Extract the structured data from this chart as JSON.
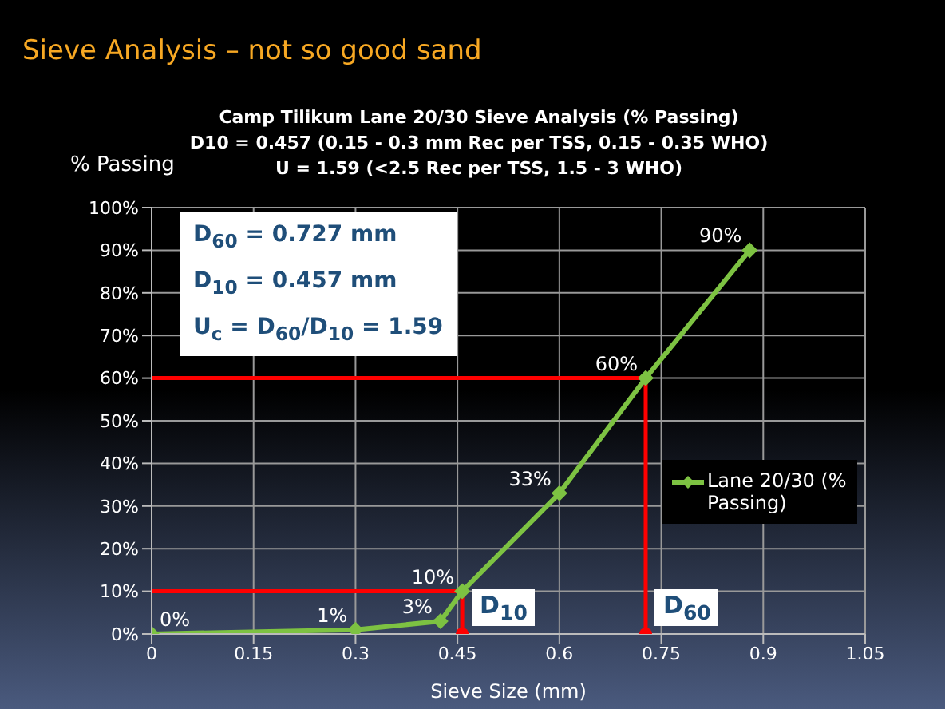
{
  "chart_data": {
    "type": "line",
    "title": "Sieve Analysis – not so good sand",
    "subtitle": "Camp Tilikum Lane 20/30 Sieve Analysis (% Passing)\nD10 = 0.457 (0.15 - 0.3 mm Rec per TSS, 0.15 - 0.35 WHO)\nU = 1.59 (<2.5 Rec per TSS, 1.5 - 3 WHO)",
    "ylabel": "% Passing",
    "xlabel": "Sieve Size (mm)",
    "series": [
      {
        "name": "Lane 20/30 (% Passing)",
        "color": "#7dc242",
        "x": [
          0,
          0.3,
          0.425,
          0.457,
          0.6,
          0.727,
          0.88
        ],
        "values": [
          0,
          1,
          3,
          10,
          33,
          60,
          90
        ],
        "value_labels": [
          "0%",
          "1%",
          "3%",
          "10%",
          "33%",
          "60%",
          "90%"
        ],
        "marker": "diamond"
      },
      {
        "type": "line",
        "color": "#ff0000",
        "x": [
          0,
          0.457,
          0.457
        ],
        "values": [
          10,
          10,
          0
        ],
        "marker": "none"
      },
      {
        "type": "line",
        "color": "#ff0000",
        "x": [
          0,
          0.727,
          0.727
        ],
        "values": [
          60,
          60,
          0
        ],
        "marker": "none"
      },
      {
        "type": "scatter",
        "color": "#ff0000",
        "x": [
          0.457,
          0.727
        ],
        "values": [
          0,
          0
        ],
        "marker": "circle"
      }
    ],
    "xlim": [
      0,
      1.05
    ],
    "xticks": [
      0,
      0.15,
      0.3,
      0.45,
      0.6,
      0.75,
      0.9,
      1.05
    ],
    "ylim": [
      0,
      100
    ],
    "yticks": [
      {
        "value": 0,
        "label": "0%"
      },
      {
        "value": 10,
        "label": "10%"
      },
      {
        "value": 20,
        "label": "20%"
      },
      {
        "value": 30,
        "label": "30%"
      },
      {
        "value": 40,
        "label": "40%"
      },
      {
        "value": 50,
        "label": "50%"
      },
      {
        "value": 60,
        "label": "60%"
      },
      {
        "value": 70,
        "label": "70%"
      },
      {
        "value": 80,
        "label": "80%"
      },
      {
        "value": 90,
        "label": "90%"
      },
      {
        "value": 100,
        "label": "100%"
      }
    ],
    "grid": true,
    "legend": "right",
    "annotations": [
      "D$_{60}$ = 0.727 mm",
      "D$_{10}$ = 0.457 mm",
      "U$_{c}$ = D$_{60}$/D$_{10}$ = 1.59",
      {
        "text": "D$_{10}$",
        "x": 0.457,
        "y": 0
      },
      {
        "text": "D$_{60}$",
        "x": 0.727,
        "y": 0
      }
    ]
  }
}
